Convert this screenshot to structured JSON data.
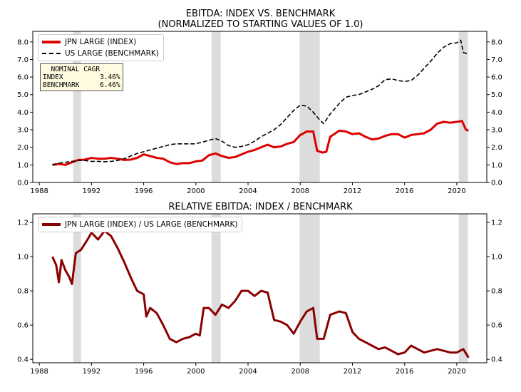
{
  "colors": {
    "index": "#dd0000",
    "benchmark": "#000000",
    "relative": "#8b0000",
    "recession": "#dcdcdc"
  },
  "recessions": [
    [
      1990.6,
      1991.2
    ],
    [
      2001.2,
      2001.9
    ],
    [
      2007.95,
      2009.5
    ],
    [
      2020.15,
      2020.85
    ]
  ],
  "chart_data": [
    {
      "type": "line",
      "title": "EBITDA: INDEX VS. BENCHMARK",
      "subtitle": "(NORMALIZED TO STARTING VALUES OF 1.0)",
      "xlim": [
        1987.5,
        2022.3
      ],
      "ylim": [
        0,
        8.6
      ],
      "xticks": [
        1988,
        1992,
        1996,
        2000,
        2004,
        2008,
        2012,
        2016,
        2020
      ],
      "yticks": [
        0.0,
        1.0,
        2.0,
        3.0,
        4.0,
        5.0,
        6.0,
        7.0,
        8.0
      ],
      "ytick_labels": [
        "0.0",
        "1.0",
        "2.0",
        "3.0",
        "4.0",
        "5.0",
        "6.0",
        "7.0",
        "8.0"
      ],
      "legend_position": "top-left",
      "series": [
        {
          "name": "JPN LARGE (INDEX)",
          "style": "solid",
          "color": "#dd0000",
          "points": [
            [
              1989.0,
              1.0
            ],
            [
              1989.5,
              1.05
            ],
            [
              1990.0,
              1.0
            ],
            [
              1990.5,
              1.15
            ],
            [
              1991.0,
              1.28
            ],
            [
              1991.5,
              1.3
            ],
            [
              1992.0,
              1.4
            ],
            [
              1992.5,
              1.35
            ],
            [
              1993.0,
              1.35
            ],
            [
              1993.5,
              1.4
            ],
            [
              1994.0,
              1.35
            ],
            [
              1994.5,
              1.28
            ],
            [
              1995.0,
              1.3
            ],
            [
              1995.5,
              1.4
            ],
            [
              1996.0,
              1.6
            ],
            [
              1996.5,
              1.5
            ],
            [
              1997.0,
              1.4
            ],
            [
              1997.5,
              1.35
            ],
            [
              1998.0,
              1.15
            ],
            [
              1998.5,
              1.05
            ],
            [
              1999.0,
              1.1
            ],
            [
              1999.5,
              1.1
            ],
            [
              2000.0,
              1.2
            ],
            [
              2000.5,
              1.25
            ],
            [
              2001.0,
              1.55
            ],
            [
              2001.5,
              1.65
            ],
            [
              2002.0,
              1.5
            ],
            [
              2002.5,
              1.4
            ],
            [
              2003.0,
              1.45
            ],
            [
              2003.5,
              1.6
            ],
            [
              2004.0,
              1.75
            ],
            [
              2004.5,
              1.85
            ],
            [
              2005.0,
              2.0
            ],
            [
              2005.5,
              2.15
            ],
            [
              2006.0,
              2.0
            ],
            [
              2006.5,
              2.05
            ],
            [
              2007.0,
              2.2
            ],
            [
              2007.5,
              2.3
            ],
            [
              2008.0,
              2.7
            ],
            [
              2008.5,
              2.9
            ],
            [
              2009.0,
              2.9
            ],
            [
              2009.3,
              1.8
            ],
            [
              2009.7,
              1.7
            ],
            [
              2010.0,
              1.75
            ],
            [
              2010.3,
              2.6
            ],
            [
              2011.0,
              2.95
            ],
            [
              2011.5,
              2.9
            ],
            [
              2012.0,
              2.75
            ],
            [
              2012.5,
              2.8
            ],
            [
              2013.0,
              2.6
            ],
            [
              2013.5,
              2.45
            ],
            [
              2014.0,
              2.5
            ],
            [
              2014.5,
              2.65
            ],
            [
              2015.0,
              2.75
            ],
            [
              2015.5,
              2.75
            ],
            [
              2016.0,
              2.55
            ],
            [
              2016.5,
              2.7
            ],
            [
              2017.0,
              2.75
            ],
            [
              2017.5,
              2.8
            ],
            [
              2018.0,
              3.0
            ],
            [
              2018.5,
              3.35
            ],
            [
              2019.0,
              3.45
            ],
            [
              2019.5,
              3.4
            ],
            [
              2020.0,
              3.45
            ],
            [
              2020.4,
              3.5
            ],
            [
              2020.7,
              3.0
            ],
            [
              2020.9,
              2.95
            ]
          ]
        },
        {
          "name": "US LARGE (BENCHMARK)",
          "style": "dashed",
          "color": "#000000",
          "points": [
            [
              1989.0,
              1.0
            ],
            [
              1989.5,
              1.1
            ],
            [
              1990.0,
              1.15
            ],
            [
              1990.5,
              1.2
            ],
            [
              1991.0,
              1.25
            ],
            [
              1991.5,
              1.25
            ],
            [
              1992.0,
              1.2
            ],
            [
              1992.5,
              1.2
            ],
            [
              1993.0,
              1.18
            ],
            [
              1993.5,
              1.2
            ],
            [
              1994.0,
              1.25
            ],
            [
              1994.5,
              1.35
            ],
            [
              1995.0,
              1.5
            ],
            [
              1995.5,
              1.65
            ],
            [
              1996.0,
              1.75
            ],
            [
              1996.5,
              1.85
            ],
            [
              1997.0,
              1.95
            ],
            [
              1997.5,
              2.05
            ],
            [
              1998.0,
              2.15
            ],
            [
              1998.5,
              2.2
            ],
            [
              1999.0,
              2.2
            ],
            [
              1999.5,
              2.2
            ],
            [
              2000.0,
              2.2
            ],
            [
              2000.5,
              2.3
            ],
            [
              2001.0,
              2.4
            ],
            [
              2001.5,
              2.5
            ],
            [
              2002.0,
              2.35
            ],
            [
              2002.5,
              2.1
            ],
            [
              2003.0,
              2.0
            ],
            [
              2003.5,
              2.05
            ],
            [
              2004.0,
              2.15
            ],
            [
              2004.5,
              2.35
            ],
            [
              2005.0,
              2.6
            ],
            [
              2005.5,
              2.8
            ],
            [
              2006.0,
              3.0
            ],
            [
              2006.5,
              3.3
            ],
            [
              2007.0,
              3.7
            ],
            [
              2007.5,
              4.1
            ],
            [
              2008.0,
              4.4
            ],
            [
              2008.5,
              4.35
            ],
            [
              2009.0,
              4.0
            ],
            [
              2009.5,
              3.55
            ],
            [
              2009.8,
              3.35
            ],
            [
              2010.3,
              3.9
            ],
            [
              2011.0,
              4.5
            ],
            [
              2011.5,
              4.85
            ],
            [
              2012.0,
              4.95
            ],
            [
              2012.5,
              5.0
            ],
            [
              2013.0,
              5.15
            ],
            [
              2013.5,
              5.3
            ],
            [
              2014.0,
              5.5
            ],
            [
              2014.5,
              5.85
            ],
            [
              2015.0,
              5.9
            ],
            [
              2015.5,
              5.8
            ],
            [
              2016.0,
              5.75
            ],
            [
              2016.5,
              5.8
            ],
            [
              2017.0,
              6.1
            ],
            [
              2017.5,
              6.5
            ],
            [
              2018.0,
              6.9
            ],
            [
              2018.5,
              7.35
            ],
            [
              2019.0,
              7.7
            ],
            [
              2019.5,
              7.9
            ],
            [
              2020.0,
              7.95
            ],
            [
              2020.3,
              8.1
            ],
            [
              2020.5,
              7.4
            ],
            [
              2020.9,
              7.3
            ]
          ]
        }
      ],
      "annotation": {
        "title": "NOMINAL CAGR",
        "rows": [
          [
            "INDEX",
            "3.46%"
          ],
          [
            "BENCHMARK",
            "6.46%"
          ]
        ]
      }
    },
    {
      "type": "line",
      "title": "RELATIVE EBITDA: INDEX / BENCHMARK",
      "xlim": [
        1987.5,
        2022.3
      ],
      "ylim": [
        0.38,
        1.25
      ],
      "xticks": [
        1988,
        1992,
        1996,
        2000,
        2004,
        2008,
        2012,
        2016,
        2020
      ],
      "yticks": [
        0.4,
        0.6,
        0.8,
        1.0,
        1.2
      ],
      "ytick_labels": [
        "0.4",
        "0.6",
        "0.8",
        "1.0",
        "1.2"
      ],
      "legend_position": "top-left",
      "series": [
        {
          "name": "JPN LARGE (INDEX) / US LARGE (BENCHMARK)",
          "style": "solid",
          "color": "#8b0000",
          "points": [
            [
              1989.0,
              1.0
            ],
            [
              1989.3,
              0.95
            ],
            [
              1989.5,
              0.85
            ],
            [
              1989.7,
              0.98
            ],
            [
              1990.0,
              0.92
            ],
            [
              1990.3,
              0.88
            ],
            [
              1990.5,
              0.84
            ],
            [
              1990.8,
              1.02
            ],
            [
              1991.2,
              1.04
            ],
            [
              1991.7,
              1.1
            ],
            [
              1992.0,
              1.14
            ],
            [
              1992.5,
              1.1
            ],
            [
              1993.0,
              1.15
            ],
            [
              1993.5,
              1.12
            ],
            [
              1994.0,
              1.05
            ],
            [
              1994.5,
              0.97
            ],
            [
              1995.0,
              0.88
            ],
            [
              1995.5,
              0.8
            ],
            [
              1996.0,
              0.78
            ],
            [
              1996.2,
              0.65
            ],
            [
              1996.5,
              0.7
            ],
            [
              1997.0,
              0.67
            ],
            [
              1997.5,
              0.6
            ],
            [
              1998.0,
              0.52
            ],
            [
              1998.5,
              0.5
            ],
            [
              1999.0,
              0.52
            ],
            [
              1999.5,
              0.53
            ],
            [
              2000.0,
              0.55
            ],
            [
              2000.3,
              0.54
            ],
            [
              2000.6,
              0.7
            ],
            [
              2001.0,
              0.7
            ],
            [
              2001.5,
              0.66
            ],
            [
              2002.0,
              0.72
            ],
            [
              2002.5,
              0.7
            ],
            [
              2003.0,
              0.74
            ],
            [
              2003.5,
              0.8
            ],
            [
              2004.0,
              0.8
            ],
            [
              2004.5,
              0.77
            ],
            [
              2005.0,
              0.8
            ],
            [
              2005.5,
              0.79
            ],
            [
              2006.0,
              0.63
            ],
            [
              2006.5,
              0.62
            ],
            [
              2007.0,
              0.6
            ],
            [
              2007.5,
              0.55
            ],
            [
              2008.0,
              0.62
            ],
            [
              2008.5,
              0.68
            ],
            [
              2009.0,
              0.7
            ],
            [
              2009.3,
              0.52
            ],
            [
              2009.8,
              0.52
            ],
            [
              2010.3,
              0.66
            ],
            [
              2011.0,
              0.68
            ],
            [
              2011.5,
              0.67
            ],
            [
              2012.0,
              0.56
            ],
            [
              2012.5,
              0.52
            ],
            [
              2013.0,
              0.5
            ],
            [
              2013.5,
              0.48
            ],
            [
              2014.0,
              0.46
            ],
            [
              2014.5,
              0.47
            ],
            [
              2015.0,
              0.45
            ],
            [
              2015.5,
              0.43
            ],
            [
              2016.0,
              0.44
            ],
            [
              2016.5,
              0.48
            ],
            [
              2017.0,
              0.46
            ],
            [
              2017.5,
              0.44
            ],
            [
              2018.0,
              0.45
            ],
            [
              2018.5,
              0.46
            ],
            [
              2019.0,
              0.45
            ],
            [
              2019.5,
              0.44
            ],
            [
              2020.0,
              0.44
            ],
            [
              2020.5,
              0.46
            ],
            [
              2020.9,
              0.41
            ]
          ]
        }
      ]
    }
  ]
}
